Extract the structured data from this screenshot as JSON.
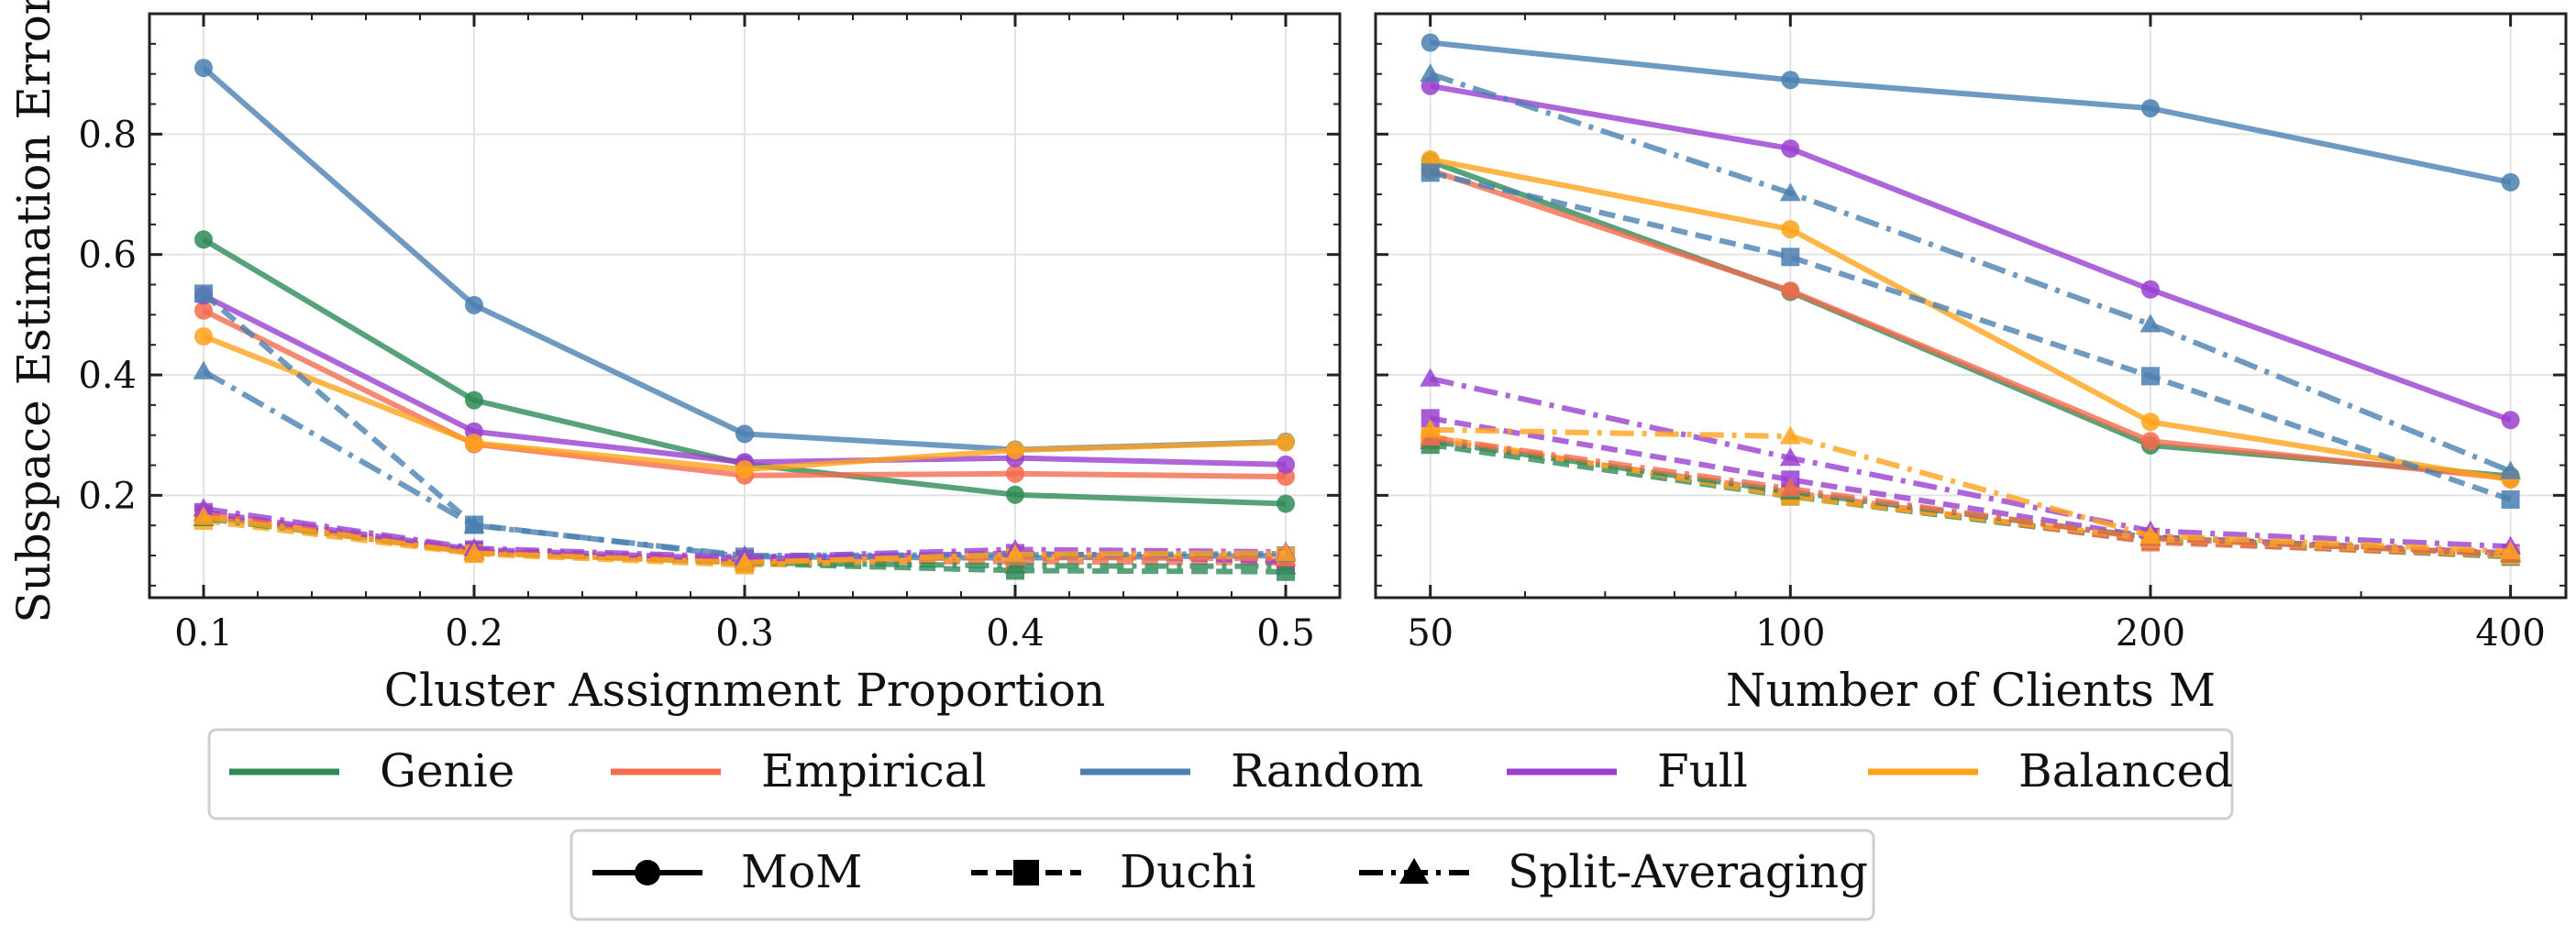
{
  "figure": {
    "ylabel": "Subspace Estimation Error"
  },
  "colors": {
    "Genie": "#2e8b57",
    "Empirical": "#f46b4e",
    "Random": "#4a7fb0",
    "Full": "#9a3fd0",
    "Balanced": "#ffa31a"
  },
  "chart_data": [
    {
      "type": "line",
      "xlabel": "Cluster Assignment Proportion",
      "ylabel": "Subspace Estimation Error",
      "x_scale": "linear",
      "x": [
        0.1,
        0.2,
        0.3,
        0.4,
        0.5
      ],
      "xticks": [
        "0.1",
        "0.2",
        "0.3",
        "0.4",
        "0.5"
      ],
      "xlim": [
        0.08,
        0.52
      ],
      "ylim": [
        0.03,
        1.0
      ],
      "yticks": [
        "0.2",
        "0.4",
        "0.6",
        "0.8"
      ],
      "grid": true,
      "series": [
        {
          "name": "Genie",
          "method": "MoM",
          "values": [
            0.625,
            0.358,
            0.252,
            0.201,
            0.186
          ]
        },
        {
          "name": "Empirical",
          "method": "MoM",
          "values": [
            0.507,
            0.285,
            0.233,
            0.236,
            0.231
          ]
        },
        {
          "name": "Random",
          "method": "MoM",
          "values": [
            0.91,
            0.516,
            0.302,
            0.276,
            0.289
          ]
        },
        {
          "name": "Full",
          "method": "MoM",
          "values": [
            0.532,
            0.306,
            0.255,
            0.262,
            0.251
          ]
        },
        {
          "name": "Balanced",
          "method": "MoM",
          "values": [
            0.464,
            0.287,
            0.243,
            0.275,
            0.288
          ]
        },
        {
          "name": "Genie",
          "method": "Duchi",
          "values": [
            0.165,
            0.107,
            0.087,
            0.075,
            0.073
          ]
        },
        {
          "name": "Empirical",
          "method": "Duchi",
          "values": [
            0.168,
            0.104,
            0.089,
            0.09,
            0.088
          ]
        },
        {
          "name": "Random",
          "method": "Duchi",
          "values": [
            0.535,
            0.151,
            0.098,
            0.096,
            0.1
          ]
        },
        {
          "name": "Full",
          "method": "Duchi",
          "values": [
            0.172,
            0.11,
            0.094,
            0.104,
            0.09
          ]
        },
        {
          "name": "Balanced",
          "method": "Duchi",
          "values": [
            0.158,
            0.103,
            0.084,
            0.097,
            0.099
          ]
        },
        {
          "name": "Genie",
          "method": "Split-Averaging",
          "values": [
            0.162,
            0.106,
            0.088,
            0.083,
            0.082
          ]
        },
        {
          "name": "Empirical",
          "method": "Split-Averaging",
          "values": [
            0.17,
            0.107,
            0.092,
            0.097,
            0.095
          ]
        },
        {
          "name": "Random",
          "method": "Split-Averaging",
          "values": [
            0.406,
            0.15,
            0.1,
            0.101,
            0.103
          ]
        },
        {
          "name": "Full",
          "method": "Split-Averaging",
          "values": [
            0.178,
            0.112,
            0.097,
            0.11,
            0.106
          ]
        },
        {
          "name": "Balanced",
          "method": "Split-Averaging",
          "values": [
            0.164,
            0.104,
            0.088,
            0.102,
            0.104
          ]
        }
      ]
    },
    {
      "type": "line",
      "xlabel": "Number of Clients M",
      "x_scale": "log2",
      "x": [
        50,
        100,
        200,
        400
      ],
      "xticks": [
        "50",
        "100",
        "200",
        "400"
      ],
      "xlim": [
        45,
        445
      ],
      "ylim": [
        0.03,
        1.0
      ],
      "grid": true,
      "series": [
        {
          "name": "Genie",
          "method": "MoM",
          "values": [
            0.755,
            0.538,
            0.283,
            0.232
          ]
        },
        {
          "name": "Empirical",
          "method": "MoM",
          "values": [
            0.74,
            0.54,
            0.29,
            0.228
          ]
        },
        {
          "name": "Random",
          "method": "MoM",
          "values": [
            0.952,
            0.89,
            0.843,
            0.72
          ]
        },
        {
          "name": "Full",
          "method": "MoM",
          "values": [
            0.88,
            0.776,
            0.542,
            0.325
          ]
        },
        {
          "name": "Balanced",
          "method": "MoM",
          "values": [
            0.758,
            0.642,
            0.322,
            0.226
          ]
        },
        {
          "name": "Genie",
          "method": "Duchi",
          "values": [
            0.284,
            0.198,
            0.124,
            0.098
          ]
        },
        {
          "name": "Empirical",
          "method": "Duchi",
          "values": [
            0.292,
            0.205,
            0.122,
            0.1
          ]
        },
        {
          "name": "Random",
          "method": "Duchi",
          "values": [
            0.736,
            0.596,
            0.398,
            0.193
          ]
        },
        {
          "name": "Full",
          "method": "Duchi",
          "values": [
            0.328,
            0.226,
            0.131,
            0.104
          ]
        },
        {
          "name": "Balanced",
          "method": "Duchi",
          "values": [
            0.298,
            0.198,
            0.128,
            0.1
          ]
        },
        {
          "name": "Genie",
          "method": "Split-Averaging",
          "values": [
            0.29,
            0.206,
            0.13,
            0.102
          ]
        },
        {
          "name": "Empirical",
          "method": "Split-Averaging",
          "values": [
            0.296,
            0.211,
            0.128,
            0.103
          ]
        },
        {
          "name": "Random",
          "method": "Split-Averaging",
          "values": [
            0.9,
            0.702,
            0.484,
            0.24
          ]
        },
        {
          "name": "Full",
          "method": "Split-Averaging",
          "values": [
            0.394,
            0.262,
            0.141,
            0.115
          ]
        },
        {
          "name": "Balanced",
          "method": "Split-Averaging",
          "values": [
            0.309,
            0.298,
            0.133,
            0.107
          ]
        }
      ]
    }
  ],
  "legend_colors": [
    {
      "label": "Genie",
      "key": "Genie"
    },
    {
      "label": "Empirical",
      "key": "Empirical"
    },
    {
      "label": "Random",
      "key": "Random"
    },
    {
      "label": "Full",
      "key": "Full"
    },
    {
      "label": "Balanced",
      "key": "Balanced"
    }
  ],
  "legend_methods": [
    {
      "label": "MoM",
      "marker": "circle",
      "dash": "solid"
    },
    {
      "label": "Duchi",
      "marker": "square",
      "dash": "dashed"
    },
    {
      "label": "Split-Averaging",
      "marker": "triangle",
      "dash": "dashdot"
    }
  ]
}
